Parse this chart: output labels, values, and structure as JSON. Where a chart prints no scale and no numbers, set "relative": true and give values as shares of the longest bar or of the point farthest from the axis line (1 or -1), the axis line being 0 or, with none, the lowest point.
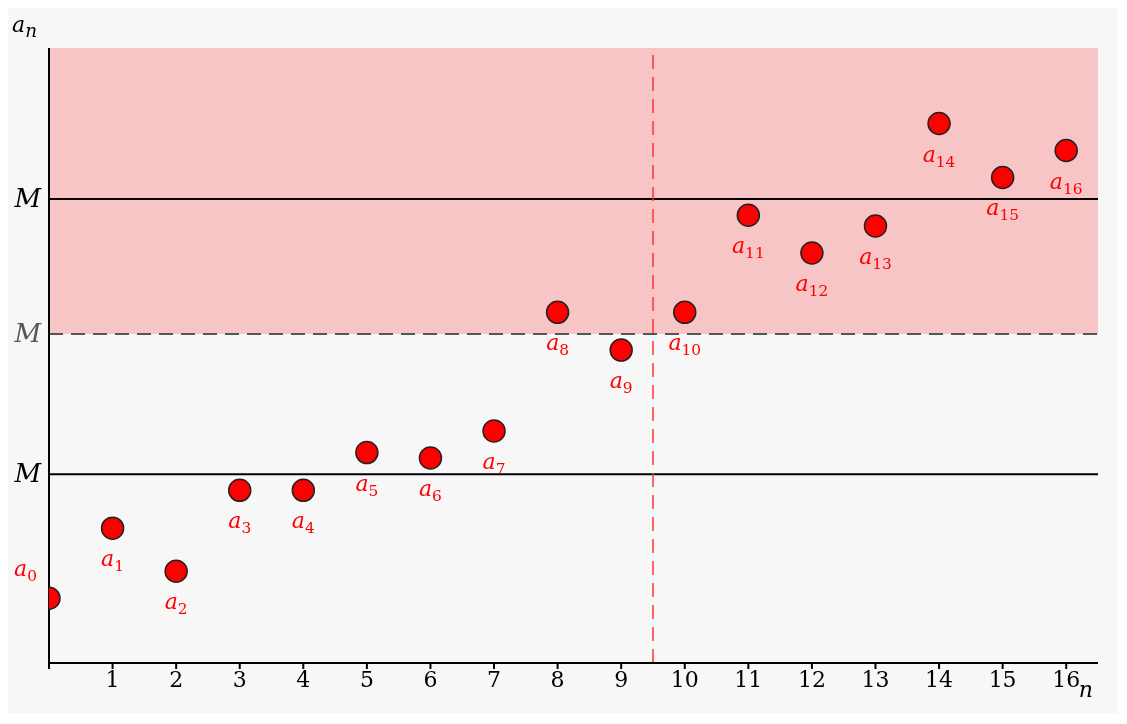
{
  "chart_data": {
    "type": "scatter",
    "relative": true,
    "xlabel": "n",
    "ylabel": "a$_{n}$",
    "x": [
      0,
      1,
      2,
      3,
      4,
      5,
      6,
      7,
      8,
      9,
      10,
      11,
      12,
      13,
      14,
      15,
      16
    ],
    "xlim": [
      0,
      16.5
    ],
    "xticks": [
      {
        "value": 0,
        "label": null
      },
      1,
      2,
      3,
      4,
      5,
      6,
      7,
      8,
      9,
      10,
      11,
      12,
      13,
      14,
      15,
      16
    ],
    "series": [
      {
        "color": "#ff0000",
        "values": [
          0.12,
          0.25,
          0.17,
          0.32,
          0.32,
          0.39,
          0.38,
          0.43,
          0.65,
          0.58,
          0.65,
          0.83,
          0.76,
          0.81,
          1,
          0.9,
          0.95
        ]
      }
    ],
    "annotations": [
      {
        "text": "a$_{0}$",
        "x": 0,
        "y": 0.12
      },
      {
        "text": "a$_{1}$",
        "x": 1,
        "y": 0.25
      },
      {
        "text": "a$_{2}$",
        "x": 2,
        "y": 0.17
      },
      {
        "text": "a$_{3}$",
        "x": 3,
        "y": 0.32
      },
      {
        "text": "a$_{4}$",
        "x": 4,
        "y": 0.32
      },
      {
        "text": "a$_{5}$",
        "x": 5,
        "y": 0.39
      },
      {
        "text": "a$_{6}$",
        "x": 6,
        "y": 0.38
      },
      {
        "text": "a$_{7}$",
        "x": 7,
        "y": 0.43
      },
      {
        "text": "a$_{8}$",
        "x": 8,
        "y": 0.65
      },
      {
        "text": "a$_{9}$",
        "x": 9,
        "y": 0.58
      },
      {
        "text": "a$_{10}$",
        "x": 10,
        "y": 0.65
      },
      {
        "text": "a$_{11}$",
        "x": 11,
        "y": 0.83
      },
      {
        "text": "a$_{12}$",
        "x": 12,
        "y": 0.76
      },
      {
        "text": "a$_{13}$",
        "x": 13,
        "y": 0.81
      },
      {
        "text": "a$_{14}$",
        "x": 14,
        "y": 1
      },
      {
        "text": "a$_{15}$",
        "x": 15,
        "y": 0.9
      },
      {
        "text": "a$_{16}$",
        "x": 16,
        "y": 0.95
      }
    ],
    "bands": [
      {
        "axis": "y",
        "from": 0.61,
        "to": 1.14,
        "color": "#f7c5c6"
      }
    ],
    "ref_lines": [
      {
        "axis": "y",
        "value": 0.61,
        "label": "M",
        "color": "#555555",
        "line_style": "dashed"
      },
      {
        "axis": "y",
        "value": 0.86,
        "label": "M",
        "color": "#000000",
        "line_style": "solid"
      },
      {
        "axis": "y",
        "value": 0.35,
        "label": "M",
        "color": "#000000",
        "line_style": "solid"
      },
      {
        "axis": "x",
        "value": 9.5,
        "color": "#ff3333",
        "line_style": "dashed"
      }
    ],
    "marker": "circle"
  }
}
